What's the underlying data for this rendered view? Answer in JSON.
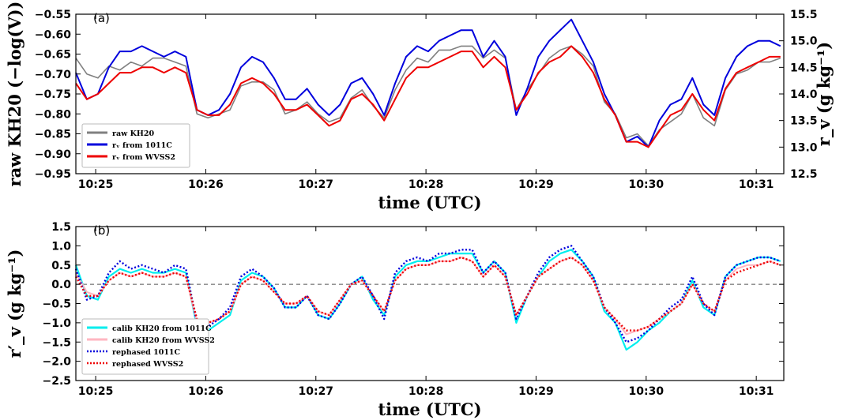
{
  "chart_data": [
    {
      "panel_label": "(a)",
      "type": "line",
      "xlabel": "time (UTC)",
      "ylabel": "raw KH20 (−log(V))",
      "ylabel_right": "r_v (g kg⁻¹)",
      "x_ticks": [
        "10:25",
        "10:26",
        "10:27",
        "10:28",
        "10:29",
        "10:30",
        "10:31"
      ],
      "x_tick_values": [
        0.18,
        1.18,
        2.18,
        3.18,
        4.18,
        5.18,
        6.18
      ],
      "xlim": [
        0,
        6.43
      ],
      "x_unit": "minutes after 10:24:49 UTC",
      "ylim": [
        -0.95,
        -0.55
      ],
      "y_ticks": [
        "−0.95",
        "−0.90",
        "−0.85",
        "−0.80",
        "−0.75",
        "−0.70",
        "−0.65",
        "−0.60",
        "−0.55"
      ],
      "y2lim": [
        12.5,
        15.5
      ],
      "y2_ticks": [
        "12.5",
        "13.0",
        "13.5",
        "14.0",
        "14.5",
        "15.0",
        "15.5"
      ],
      "legend_position": "lower-left",
      "series": [
        {
          "name": "raw KH20",
          "color": "#808080",
          "axis": "left",
          "x": [
            0,
            0.1,
            0.2,
            0.3,
            0.4,
            0.5,
            0.6,
            0.7,
            0.8,
            0.9,
            1.0,
            1.1,
            1.2,
            1.3,
            1.4,
            1.5,
            1.6,
            1.7,
            1.8,
            1.9,
            2.0,
            2.1,
            2.2,
            2.3,
            2.4,
            2.5,
            2.6,
            2.7,
            2.8,
            2.9,
            3.0,
            3.1,
            3.2,
            3.3,
            3.4,
            3.5,
            3.6,
            3.7,
            3.8,
            3.9,
            4.0,
            4.1,
            4.2,
            4.3,
            4.4,
            4.5,
            4.6,
            4.7,
            4.8,
            4.9,
            5.0,
            5.1,
            5.2,
            5.3,
            5.4,
            5.5,
            5.6,
            5.7,
            5.8,
            5.9,
            6.0,
            6.1,
            6.2,
            6.3,
            6.4
          ],
          "values": [
            -0.66,
            -0.7,
            -0.71,
            -0.68,
            -0.69,
            -0.67,
            -0.68,
            -0.66,
            -0.66,
            -0.67,
            -0.68,
            -0.8,
            -0.81,
            -0.8,
            -0.79,
            -0.73,
            -0.72,
            -0.72,
            -0.74,
            -0.8,
            -0.79,
            -0.77,
            -0.8,
            -0.82,
            -0.81,
            -0.76,
            -0.74,
            -0.78,
            -0.81,
            -0.74,
            -0.69,
            -0.66,
            -0.67,
            -0.64,
            -0.64,
            -0.63,
            -0.63,
            -0.66,
            -0.64,
            -0.66,
            -0.79,
            -0.74,
            -0.7,
            -0.66,
            -0.64,
            -0.63,
            -0.65,
            -0.68,
            -0.77,
            -0.8,
            -0.86,
            -0.85,
            -0.88,
            -0.84,
            -0.82,
            -0.8,
            -0.75,
            -0.81,
            -0.83,
            -0.74,
            -0.7,
            -0.69,
            -0.67,
            -0.67,
            -0.66
          ]
        },
        {
          "name": "r_v from 1011C",
          "color": "#0000dd",
          "axis": "right",
          "x": [
            0,
            0.1,
            0.2,
            0.3,
            0.4,
            0.5,
            0.6,
            0.7,
            0.8,
            0.9,
            1.0,
            1.1,
            1.2,
            1.3,
            1.4,
            1.5,
            1.6,
            1.7,
            1.8,
            1.9,
            2.0,
            2.1,
            2.2,
            2.3,
            2.4,
            2.5,
            2.6,
            2.7,
            2.8,
            2.9,
            3.0,
            3.1,
            3.2,
            3.3,
            3.4,
            3.5,
            3.6,
            3.7,
            3.8,
            3.9,
            4.0,
            4.1,
            4.2,
            4.3,
            4.4,
            4.5,
            4.6,
            4.7,
            4.8,
            4.9,
            5.0,
            5.1,
            5.2,
            5.3,
            5.4,
            5.5,
            5.6,
            5.7,
            5.8,
            5.9,
            6.0,
            6.1,
            6.2,
            6.3,
            6.4
          ],
          "values": [
            14.4,
            13.9,
            14.0,
            14.5,
            14.8,
            14.8,
            14.9,
            14.8,
            14.7,
            14.8,
            14.7,
            13.7,
            13.6,
            13.7,
            14.0,
            14.5,
            14.7,
            14.6,
            14.3,
            13.9,
            13.9,
            14.1,
            13.8,
            13.6,
            13.8,
            14.2,
            14.3,
            14.0,
            13.6,
            14.2,
            14.7,
            14.9,
            14.8,
            15.0,
            15.1,
            15.2,
            15.2,
            14.7,
            15.0,
            14.7,
            13.6,
            14.1,
            14.7,
            15.0,
            15.2,
            15.4,
            15.0,
            14.6,
            14.0,
            13.6,
            13.1,
            13.2,
            13.0,
            13.5,
            13.8,
            13.9,
            14.3,
            13.8,
            13.6,
            14.3,
            14.7,
            14.9,
            15.0,
            15.0,
            14.9
          ]
        },
        {
          "name": "r_v from WVSS2",
          "color": "#ee0000",
          "axis": "right",
          "x": [
            0,
            0.1,
            0.2,
            0.3,
            0.4,
            0.5,
            0.6,
            0.7,
            0.8,
            0.9,
            1.0,
            1.1,
            1.2,
            1.3,
            1.4,
            1.5,
            1.6,
            1.7,
            1.8,
            1.9,
            2.0,
            2.1,
            2.2,
            2.3,
            2.4,
            2.5,
            2.6,
            2.7,
            2.8,
            2.9,
            3.0,
            3.1,
            3.2,
            3.3,
            3.4,
            3.5,
            3.6,
            3.7,
            3.8,
            3.9,
            4.0,
            4.1,
            4.2,
            4.3,
            4.4,
            4.5,
            4.6,
            4.7,
            4.8,
            4.9,
            5.0,
            5.1,
            5.2,
            5.3,
            5.4,
            5.5,
            5.6,
            5.7,
            5.8,
            5.9,
            6.0,
            6.1,
            6.2,
            6.3,
            6.4
          ],
          "values": [
            14.2,
            13.9,
            14.0,
            14.2,
            14.4,
            14.4,
            14.5,
            14.5,
            14.4,
            14.5,
            14.4,
            13.7,
            13.6,
            13.6,
            13.8,
            14.2,
            14.3,
            14.2,
            14.0,
            13.7,
            13.7,
            13.8,
            13.6,
            13.4,
            13.5,
            13.9,
            14.0,
            13.8,
            13.5,
            13.9,
            14.3,
            14.5,
            14.5,
            14.6,
            14.7,
            14.8,
            14.8,
            14.5,
            14.7,
            14.5,
            13.7,
            14.0,
            14.4,
            14.6,
            14.7,
            14.9,
            14.7,
            14.4,
            13.9,
            13.6,
            13.1,
            13.1,
            13.0,
            13.3,
            13.6,
            13.7,
            14.0,
            13.7,
            13.5,
            14.1,
            14.4,
            14.5,
            14.6,
            14.7,
            14.7
          ]
        }
      ]
    },
    {
      "panel_label": "(b)",
      "type": "line",
      "xlabel": "time (UTC)",
      "ylabel": "r′_v (g kg⁻¹)",
      "x_ticks": [
        "10:25",
        "10:26",
        "10:27",
        "10:28",
        "10:29",
        "10:30",
        "10:31"
      ],
      "x_tick_values": [
        0.18,
        1.18,
        2.18,
        3.18,
        4.18,
        5.18,
        6.18
      ],
      "xlim": [
        0,
        6.43
      ],
      "x_unit": "minutes after 10:24:49 UTC",
      "ylim": [
        -2.5,
        1.5
      ],
      "y_ticks": [
        "−2.5",
        "−2.0",
        "−1.5",
        "−1.0",
        "−0.5",
        "0.0",
        "0.5",
        "1.0",
        "1.5"
      ],
      "zero_line": true,
      "legend_position": "lower-left",
      "series": [
        {
          "name": "calib KH20 from 1011C",
          "color": "#00eeee",
          "x": [
            0,
            0.1,
            0.2,
            0.3,
            0.4,
            0.5,
            0.6,
            0.7,
            0.8,
            0.9,
            1.0,
            1.1,
            1.2,
            1.3,
            1.4,
            1.5,
            1.6,
            1.7,
            1.8,
            1.9,
            2.0,
            2.1,
            2.2,
            2.3,
            2.4,
            2.5,
            2.6,
            2.7,
            2.8,
            2.9,
            3.0,
            3.1,
            3.2,
            3.3,
            3.4,
            3.5,
            3.6,
            3.7,
            3.8,
            3.9,
            4.0,
            4.1,
            4.2,
            4.3,
            4.4,
            4.5,
            4.6,
            4.7,
            4.8,
            4.9,
            5.0,
            5.1,
            5.2,
            5.3,
            5.4,
            5.5,
            5.6,
            5.7,
            5.8,
            5.9,
            6.0,
            6.1,
            6.2,
            6.3,
            6.4
          ],
          "values": [
            0.5,
            -0.3,
            -0.4,
            0.2,
            0.4,
            0.3,
            0.4,
            0.3,
            0.3,
            0.4,
            0.3,
            -1.1,
            -1.2,
            -1.0,
            -0.8,
            0.1,
            0.3,
            0.2,
            -0.1,
            -0.6,
            -0.6,
            -0.3,
            -0.8,
            -0.9,
            -0.5,
            0.0,
            0.2,
            -0.4,
            -0.8,
            0.2,
            0.5,
            0.6,
            0.6,
            0.7,
            0.8,
            0.8,
            0.8,
            0.3,
            0.6,
            0.3,
            -1.0,
            -0.3,
            0.2,
            0.6,
            0.8,
            0.9,
            0.6,
            0.2,
            -0.7,
            -1.0,
            -1.7,
            -1.5,
            -1.2,
            -1.0,
            -0.7,
            -0.5,
            0.1,
            -0.6,
            -0.8,
            0.2,
            0.5,
            0.6,
            0.7,
            0.7,
            0.6
          ]
        },
        {
          "name": "calib KH20 from WVSS2",
          "color": "#ffb6c1",
          "x": [
            0,
            0.1,
            0.2,
            0.3,
            0.4,
            0.5,
            0.6,
            0.7,
            0.8,
            0.9,
            1.0,
            1.1,
            1.2,
            1.3,
            1.4,
            1.5,
            1.6,
            1.7,
            1.8,
            1.9,
            2.0,
            2.1,
            2.2,
            2.3,
            2.4,
            2.5,
            2.6,
            2.7,
            2.8,
            2.9,
            3.0,
            3.1,
            3.2,
            3.3,
            3.4,
            3.5,
            3.6,
            3.7,
            3.8,
            3.9,
            4.0,
            4.1,
            4.2,
            4.3,
            4.4,
            4.5,
            4.6,
            4.7,
            4.8,
            4.9,
            5.0,
            5.1,
            5.2,
            5.3,
            5.4,
            5.5,
            5.6,
            5.7,
            5.8,
            5.9,
            6.0,
            6.1,
            6.2,
            6.3,
            6.4
          ],
          "values": [
            0.3,
            -0.2,
            -0.3,
            0.1,
            0.3,
            0.2,
            0.3,
            0.2,
            0.2,
            0.3,
            0.2,
            -1.0,
            -1.0,
            -0.9,
            -0.7,
            0.0,
            0.2,
            0.1,
            -0.2,
            -0.5,
            -0.5,
            -0.3,
            -0.7,
            -0.8,
            -0.4,
            0.0,
            0.1,
            -0.3,
            -0.7,
            0.1,
            0.4,
            0.5,
            0.5,
            0.6,
            0.6,
            0.7,
            0.6,
            0.2,
            0.5,
            0.2,
            -0.8,
            -0.3,
            0.2,
            0.4,
            0.6,
            0.7,
            0.5,
            0.1,
            -0.6,
            -0.9,
            -1.3,
            -1.2,
            -1.1,
            -0.9,
            -0.7,
            -0.5,
            0.0,
            -0.5,
            -0.7,
            0.1,
            0.4,
            0.5,
            0.5,
            0.6,
            0.5
          ]
        },
        {
          "name": "rephased 1011C",
          "color": "#0000dd",
          "dash": "dotted",
          "x": [
            0,
            0.1,
            0.2,
            0.3,
            0.4,
            0.5,
            0.6,
            0.7,
            0.8,
            0.9,
            1.0,
            1.1,
            1.2,
            1.3,
            1.4,
            1.5,
            1.6,
            1.7,
            1.8,
            1.9,
            2.0,
            2.1,
            2.2,
            2.3,
            2.4,
            2.5,
            2.6,
            2.7,
            2.8,
            2.9,
            3.0,
            3.1,
            3.2,
            3.3,
            3.4,
            3.5,
            3.6,
            3.7,
            3.8,
            3.9,
            4.0,
            4.1,
            4.2,
            4.3,
            4.4,
            4.5,
            4.6,
            4.7,
            4.8,
            4.9,
            5.0,
            5.1,
            5.2,
            5.3,
            5.4,
            5.5,
            5.6,
            5.7,
            5.8,
            5.9,
            6.0,
            6.1,
            6.2,
            6.3,
            6.4
          ],
          "values": [
            0.4,
            -0.4,
            -0.3,
            0.3,
            0.6,
            0.4,
            0.5,
            0.4,
            0.3,
            0.5,
            0.4,
            -1.0,
            -1.1,
            -0.9,
            -0.6,
            0.2,
            0.4,
            0.2,
            -0.1,
            -0.6,
            -0.6,
            -0.3,
            -0.8,
            -0.9,
            -0.5,
            0.0,
            0.2,
            -0.3,
            -0.9,
            0.3,
            0.6,
            0.7,
            0.6,
            0.8,
            0.8,
            0.9,
            0.9,
            0.3,
            0.6,
            0.3,
            -0.9,
            -0.3,
            0.3,
            0.7,
            0.9,
            1.0,
            0.6,
            0.2,
            -0.6,
            -1.0,
            -1.5,
            -1.4,
            -1.2,
            -0.9,
            -0.6,
            -0.4,
            0.2,
            -0.5,
            -0.8,
            0.2,
            0.5,
            0.6,
            0.7,
            0.7,
            0.6
          ]
        },
        {
          "name": "rephased WVSS2",
          "color": "#ee0000",
          "dash": "dotted",
          "x": [
            0,
            0.1,
            0.2,
            0.3,
            0.4,
            0.5,
            0.6,
            0.7,
            0.8,
            0.9,
            1.0,
            1.1,
            1.2,
            1.3,
            1.4,
            1.5,
            1.6,
            1.7,
            1.8,
            1.9,
            2.0,
            2.1,
            2.2,
            2.3,
            2.4,
            2.5,
            2.6,
            2.7,
            2.8,
            2.9,
            3.0,
            3.1,
            3.2,
            3.3,
            3.4,
            3.5,
            3.6,
            3.7,
            3.8,
            3.9,
            4.0,
            4.1,
            4.2,
            4.3,
            4.4,
            4.5,
            4.6,
            4.7,
            4.8,
            4.9,
            5.0,
            5.1,
            5.2,
            5.3,
            5.4,
            5.5,
            5.6,
            5.7,
            5.8,
            5.9,
            6.0,
            6.1,
            6.2,
            6.3,
            6.4
          ],
          "values": [
            0.2,
            -0.3,
            -0.3,
            0.1,
            0.3,
            0.2,
            0.3,
            0.2,
            0.2,
            0.3,
            0.2,
            -0.9,
            -1.0,
            -0.9,
            -0.7,
            0.0,
            0.2,
            0.1,
            -0.2,
            -0.5,
            -0.5,
            -0.3,
            -0.7,
            -0.8,
            -0.4,
            0.0,
            0.1,
            -0.3,
            -0.7,
            0.1,
            0.4,
            0.5,
            0.5,
            0.6,
            0.6,
            0.7,
            0.6,
            0.2,
            0.5,
            0.2,
            -0.8,
            -0.3,
            0.2,
            0.4,
            0.6,
            0.7,
            0.5,
            0.1,
            -0.6,
            -0.9,
            -1.2,
            -1.2,
            -1.1,
            -0.9,
            -0.7,
            -0.5,
            0.0,
            -0.5,
            -0.7,
            0.1,
            0.3,
            0.4,
            0.5,
            0.6,
            0.5
          ]
        }
      ]
    }
  ]
}
